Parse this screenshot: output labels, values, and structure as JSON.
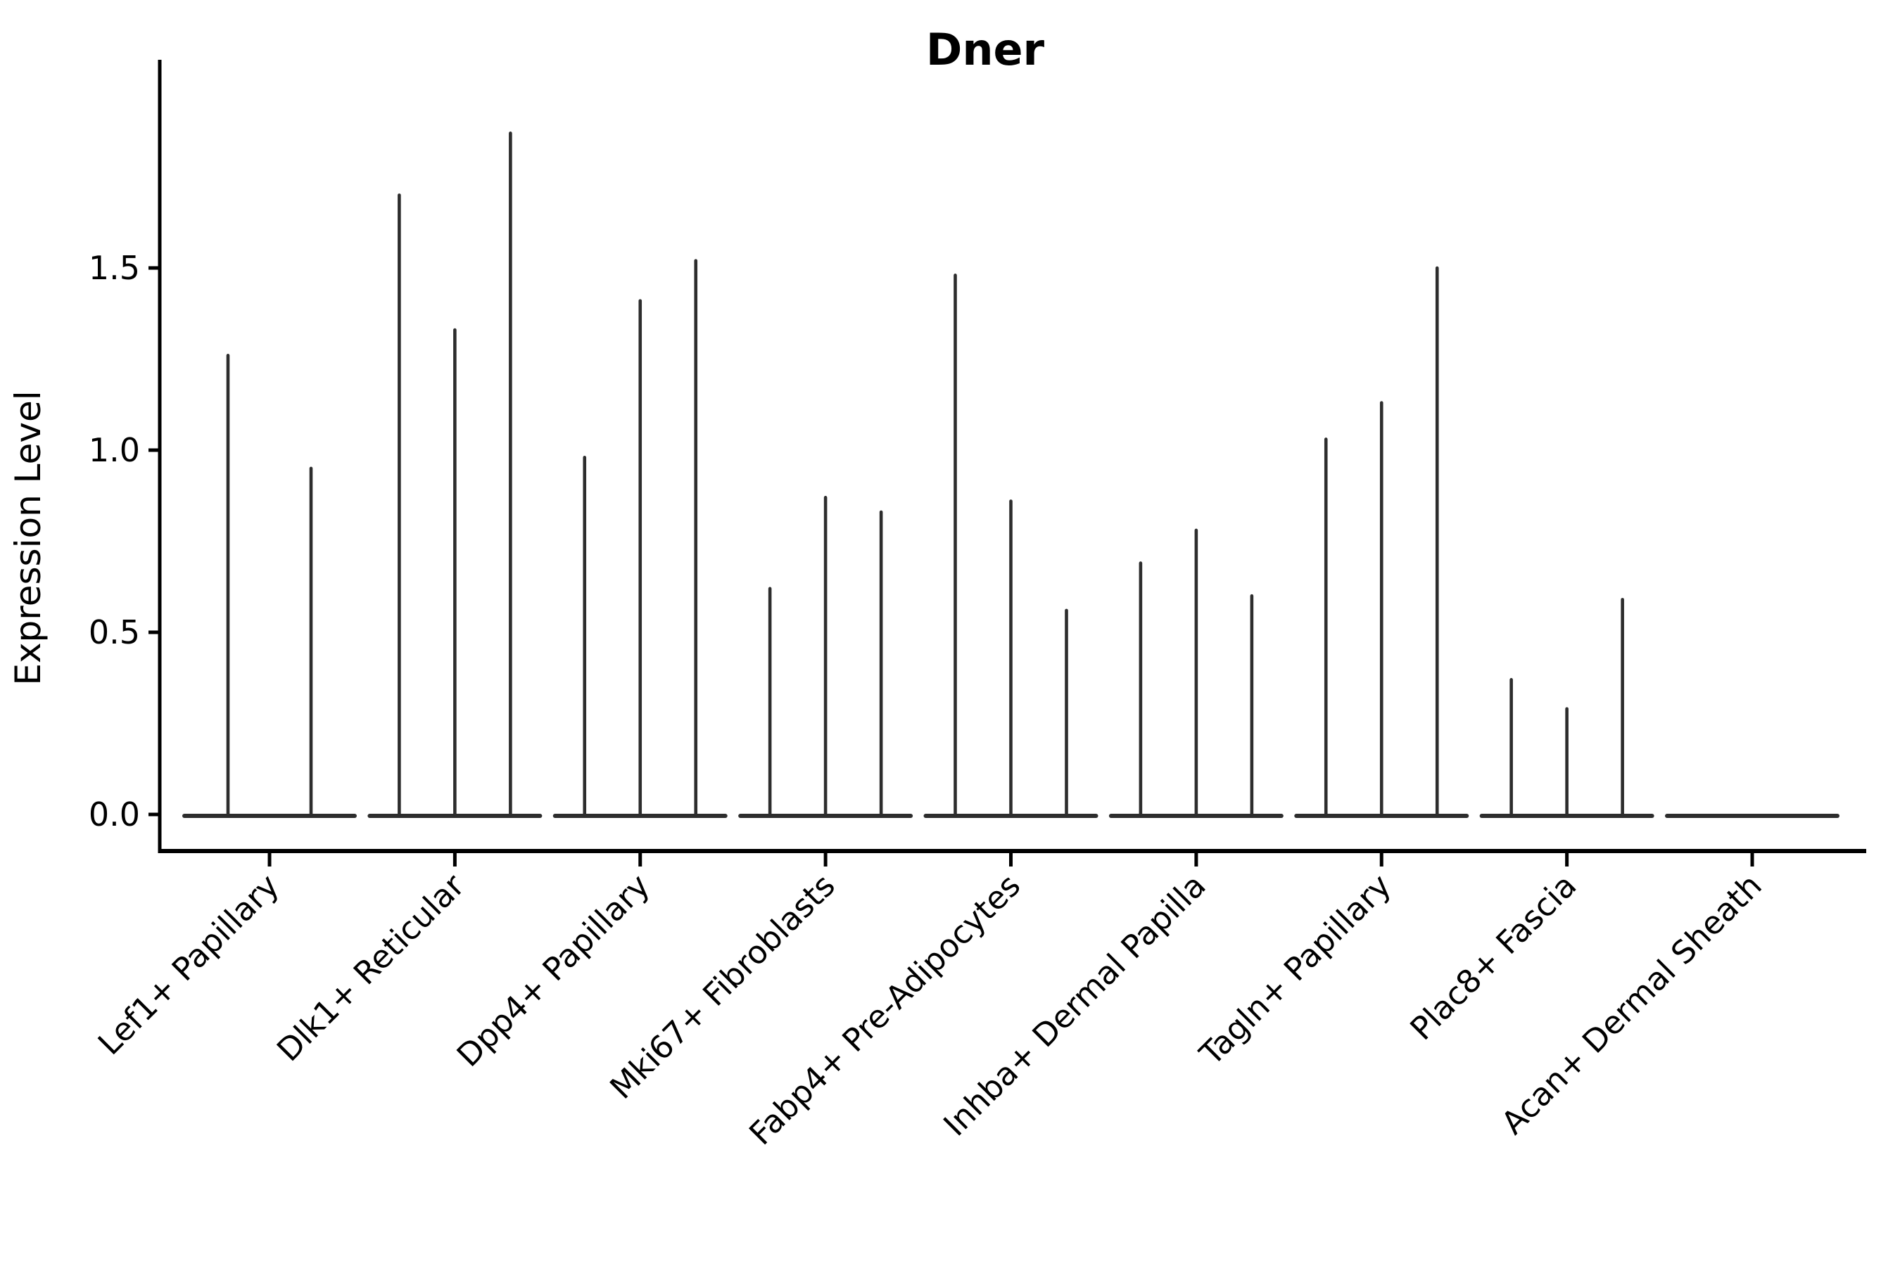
{
  "title": "Dner",
  "colors": {
    "violin": "#2d2d2d",
    "axis": "#000000",
    "background": "#ffffff"
  },
  "chart_data": {
    "type": "violin",
    "title": "Dner",
    "xlabel": "",
    "ylabel": "Expression Level",
    "ylim": [
      -0.1,
      2.07
    ],
    "yticks": [
      0,
      0.5,
      1,
      1.5
    ],
    "ytick_labels": [
      "0.0",
      "0.5",
      "1.0",
      "1.5"
    ],
    "grid": false,
    "legend_position": "none",
    "categories": [
      "Lef1+ Papillary",
      "Dlk1+ Reticular",
      "Dpp4+ Papillary",
      "Mki67+ Fibroblasts",
      "Fabp4+ Pre-Adipocytes",
      "Inhba+ Dermal Papilla",
      "Tagln+ Papillary",
      "Plac8+ Fascia",
      "Acan+ Dermal Sheath"
    ],
    "series": [
      {
        "category": "Lef1+ Papillary",
        "violin_peaks": [
          1.26,
          0.95
        ]
      },
      {
        "category": "Dlk1+ Reticular",
        "violin_peaks": [
          1.7,
          1.33,
          1.87
        ]
      },
      {
        "category": "Dpp4+ Papillary",
        "violin_peaks": [
          0.98,
          1.41,
          1.52
        ]
      },
      {
        "category": "Mki67+ Fibroblasts",
        "violin_peaks": [
          0.62,
          0.87,
          0.83
        ]
      },
      {
        "category": "Fabp4+ Pre-Adipocytes",
        "violin_peaks": [
          1.48,
          0.86,
          0.56
        ]
      },
      {
        "category": "Inhba+ Dermal Papilla",
        "violin_peaks": [
          0.69,
          0.78,
          0.6
        ]
      },
      {
        "category": "Tagln+ Papillary",
        "violin_peaks": [
          1.03,
          1.13,
          1.5
        ]
      },
      {
        "category": "Plac8+ Fascia",
        "violin_peaks": [
          0.37,
          0.29,
          0.59
        ]
      },
      {
        "category": "Acan+ Dermal Sheath",
        "violin_peaks": [
          0,
          0,
          0
        ]
      }
    ]
  }
}
